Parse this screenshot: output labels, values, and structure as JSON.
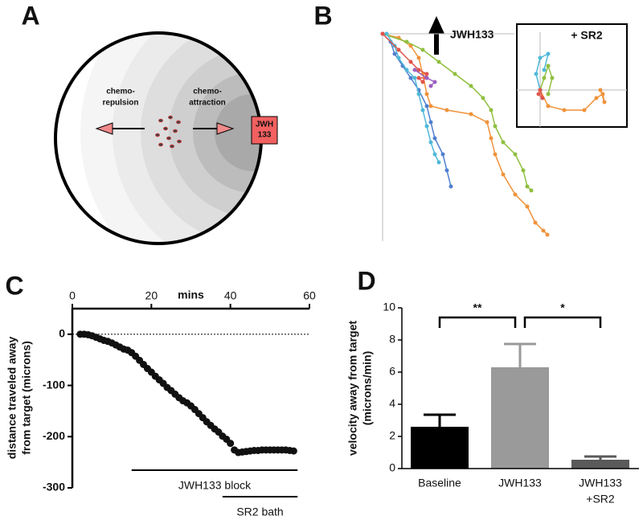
{
  "chart_data": [
    {
      "type": "diagram",
      "panel": "A",
      "repulsion_label": [
        "chemo-",
        "repulsion"
      ],
      "attraction_label": [
        "chemo-",
        "attraction"
      ],
      "target_label": [
        "JWH",
        "133"
      ]
    },
    {
      "type": "trajectory",
      "panel": "B",
      "arrow_label": "JWH133",
      "series": [
        {
          "color": "#f0923a",
          "x": [
            0,
            20,
            35,
            45,
            50,
            55,
            60,
            80,
            110,
            130,
            135,
            140,
            150,
            165,
            180,
            190,
            200,
            205
          ],
          "y": [
            0,
            -5,
            -15,
            -30,
            -50,
            -75,
            -90,
            -95,
            -100,
            -110,
            -130,
            -150,
            -175,
            -200,
            -215,
            -235,
            -245,
            -250
          ]
        },
        {
          "color": "#8fbf3f",
          "x": [
            0,
            30,
            50,
            70,
            90,
            110,
            125,
            135,
            140,
            150,
            165,
            175,
            180,
            185
          ],
          "y": [
            0,
            -10,
            -20,
            -35,
            -50,
            -65,
            -80,
            -95,
            -115,
            -135,
            -150,
            -170,
            -190,
            -195
          ]
        },
        {
          "color": "#4f7fcf",
          "x": [
            0,
            10,
            15,
            25,
            35,
            45,
            55,
            60,
            65,
            75,
            80,
            85
          ],
          "y": [
            0,
            -10,
            -25,
            -40,
            -55,
            -70,
            -90,
            -110,
            -130,
            -150,
            -170,
            -190
          ]
        },
        {
          "color": "#4fb8d8",
          "x": [
            5,
            15,
            20,
            30,
            40,
            45,
            50,
            55,
            60,
            65,
            70
          ],
          "y": [
            0,
            -15,
            -30,
            -45,
            -55,
            -75,
            -95,
            -115,
            -135,
            -150,
            -160
          ]
        },
        {
          "color": "#e0544a",
          "x": [
            0,
            20,
            35,
            45,
            55,
            50,
            45,
            55
          ],
          "y": [
            0,
            -20,
            -35,
            -45,
            -50,
            -60,
            -55,
            -55
          ]
        },
        {
          "color": "#9a5fc0",
          "x": [
            40,
            55,
            65,
            60
          ],
          "y": [
            -45,
            -55,
            -60,
            -65
          ]
        }
      ],
      "inset": {
        "label": "+ SR2",
        "series": [
          {
            "color": "#f0923a",
            "x": [
              0,
              10,
              30,
              55,
              70,
              78,
              80,
              75
            ],
            "y": [
              0,
              -20,
              -25,
              -25,
              -10,
              -5,
              -15,
              0
            ]
          },
          {
            "color": "#8fbf3f",
            "x": [
              0,
              5,
              10,
              15,
              10
            ],
            "y": [
              0,
              15,
              30,
              15,
              -5
            ]
          },
          {
            "color": "#4fb8d8",
            "x": [
              0,
              -5,
              0,
              10,
              5
            ],
            "y": [
              0,
              20,
              40,
              45,
              25
            ]
          },
          {
            "color": "#e0544a",
            "x": [
              0,
              3,
              -2
            ],
            "y": [
              0,
              -10,
              -5
            ]
          }
        ]
      }
    },
    {
      "type": "scatter",
      "panel": "C",
      "xlabel": "mins",
      "ylabel": [
        "distance traveled away",
        "from target (microns)"
      ],
      "color": "#111111",
      "x": [
        2,
        3,
        4,
        5,
        6,
        7,
        8,
        9,
        10,
        11,
        12,
        13,
        14,
        15,
        16,
        17,
        18,
        19,
        20,
        21,
        22,
        23,
        24,
        25,
        26,
        27,
        28,
        29,
        30,
        31,
        32,
        33,
        34,
        35,
        36,
        37,
        38,
        39,
        40,
        41,
        42,
        43,
        44,
        45,
        46,
        47,
        48,
        49,
        50,
        51,
        52,
        53,
        54,
        55,
        56
      ],
      "values": [
        0,
        0,
        -1,
        -3,
        -6,
        -9,
        -12,
        -14,
        -17,
        -21,
        -25,
        -29,
        -31,
        -36,
        -43,
        -51,
        -59,
        -67,
        -74,
        -82,
        -89,
        -96,
        -104,
        -110,
        -117,
        -124,
        -130,
        -134,
        -140,
        -147,
        -155,
        -163,
        -171,
        -178,
        -185,
        -191,
        -199,
        -205,
        -213,
        -226,
        -231,
        -230,
        -229,
        -228,
        -227,
        -227,
        -226,
        -226,
        -226,
        -226,
        -226,
        -226,
        -226,
        -227,
        -228
      ],
      "xlim": [
        0,
        60
      ],
      "xticks": [
        0,
        20,
        40,
        60
      ],
      "ylim": [
        -300,
        50
      ],
      "yticks": [
        0,
        -100,
        -200,
        -300
      ],
      "annotations": [
        {
          "label": "JWH133 block",
          "x": [
            15,
            57
          ]
        },
        {
          "label": "SR2 bath",
          "x": [
            38,
            57
          ]
        }
      ]
    },
    {
      "type": "bar",
      "panel": "D",
      "ylabel": [
        "velocity away from target",
        "(microns/min)"
      ],
      "categories": [
        [
          "Baseline"
        ],
        [
          "JWH133"
        ],
        [
          "JWH133",
          "+SR2"
        ]
      ],
      "values": [
        2.6,
        6.3,
        0.55
      ],
      "errors": [
        0.75,
        1.45,
        0.2
      ],
      "colors": [
        "#000000",
        "#9a9a9a",
        "#5a5a5a"
      ],
      "ylim": [
        0,
        10
      ],
      "yticks": [
        0,
        2,
        4,
        6,
        8,
        10
      ],
      "significance": [
        {
          "label": "**",
          "between": [
            0,
            1
          ]
        },
        {
          "label": "*",
          "between": [
            1,
            2
          ]
        }
      ]
    }
  ]
}
